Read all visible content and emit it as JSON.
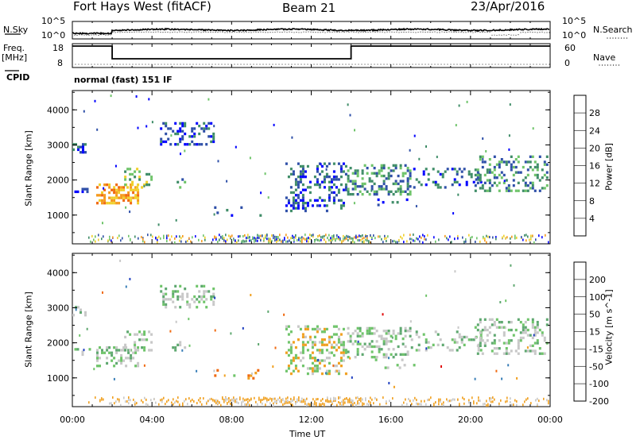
{
  "header": {
    "title": "Fort Hays West (fitACF)",
    "beam": "Beam 21",
    "date": "23/Apr/2016"
  },
  "sky_panel": {
    "left_label": "N.Sky",
    "right_label": "N.Search",
    "left_ticks": [
      "10^5",
      "10^0"
    ],
    "right_ticks": [
      "10^5",
      "10^0"
    ]
  },
  "freq_panel": {
    "left_label_1": "Freq.",
    "left_label_2": "[MHz]",
    "right_label": "Nave",
    "left_ticks": [
      "18",
      "8"
    ],
    "right_ticks": [
      "60",
      "0"
    ]
  },
  "cpid": {
    "label": "CPID",
    "mode": "normal (fast) 151 IF"
  },
  "colors": {
    "power_scale": [
      "#0000ff",
      "#2e4fa8",
      "#3f8d68",
      "#6fc46a",
      "#f0d02c",
      "#f59a1e",
      "#f06a10",
      "#e83010",
      "#e00000"
    ],
    "velocity_scale": [
      "#e00000",
      "#f06a10",
      "#f0a020",
      "#6fc46a",
      "#c8c8c8",
      "#5fa870",
      "#3a7fb8",
      "#2040c0"
    ]
  },
  "chart_data": [
    {
      "type": "heatmap",
      "name_panel": "power",
      "xlabel": "",
      "ylabel": "Slant Range [km]",
      "x_ticks": [
        "00:00",
        "04:00",
        "08:00",
        "12:00",
        "16:00",
        "20:00",
        "00:00"
      ],
      "y_ticks": [
        1000,
        2000,
        3000,
        4000
      ],
      "xlim_hours": [
        0,
        24
      ],
      "ylim_km": [
        180,
        4550
      ],
      "colorbar_label": "Power [dB]",
      "colorbar_ticks": [
        4,
        8,
        12,
        16,
        20,
        24,
        28
      ]
    },
    {
      "type": "heatmap",
      "name_panel": "velocity",
      "xlabel": "Time UT",
      "ylabel": "Slant Range [km]",
      "x_ticks": [
        "00:00",
        "04:00",
        "08:00",
        "12:00",
        "16:00",
        "20:00",
        "00:00"
      ],
      "y_ticks": [
        1000,
        2000,
        3000,
        4000
      ],
      "xlim_hours": [
        0,
        24
      ],
      "ylim_km": [
        180,
        4550
      ],
      "colorbar_label": "Velocity [m s^-1]",
      "colorbar_ticks": [
        200,
        100,
        50,
        15,
        -15,
        -50,
        -100,
        -200
      ]
    }
  ]
}
